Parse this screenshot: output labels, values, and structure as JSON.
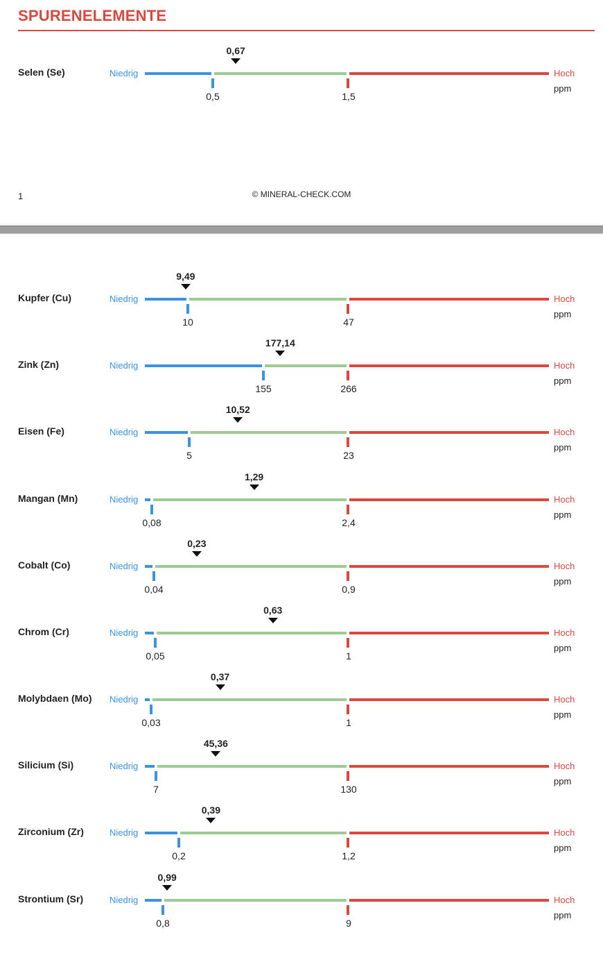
{
  "header": {
    "title": "SPURENELEMENTE"
  },
  "scale_labels": {
    "low": "Niedrig",
    "high": "Hoch",
    "unit": "ppm"
  },
  "footer": {
    "page_number": "1",
    "copyright": "© MINERAL-CHECK.COM"
  },
  "colors": {
    "accent": "#d9473f",
    "low": "#3b93e0",
    "normal": "#9ccc94",
    "high": "#d9473f"
  },
  "elements": [
    {
      "name": "Selen (Se)",
      "low_label": "0,5",
      "high_label": "1,5",
      "value_label": "0,67",
      "low": 0.5,
      "high": 1.5,
      "value": 0.67
    },
    {
      "name": "Kupfer (Cu)",
      "low_label": "10",
      "high_label": "47",
      "value_label": "9,49",
      "low": 10,
      "high": 47,
      "value": 9.49
    },
    {
      "name": "Zink (Zn)",
      "low_label": "155",
      "high_label": "266",
      "value_label": "177,14",
      "low": 155,
      "high": 266,
      "value": 177.14
    },
    {
      "name": "Eisen (Fe)",
      "low_label": "5",
      "high_label": "23",
      "value_label": "10,52",
      "low": 5,
      "high": 23,
      "value": 10.52
    },
    {
      "name": "Mangan (Mn)",
      "low_label": "0,08",
      "high_label": "2,4",
      "value_label": "1,29",
      "low": 0.08,
      "high": 2.4,
      "value": 1.29
    },
    {
      "name": "Cobalt (Co)",
      "low_label": "0,04",
      "high_label": "0,9",
      "value_label": "0,23",
      "low": 0.04,
      "high": 0.9,
      "value": 0.23
    },
    {
      "name": "Chrom (Cr)",
      "low_label": "0,05",
      "high_label": "1",
      "value_label": "0,63",
      "low": 0.05,
      "high": 1,
      "value": 0.63
    },
    {
      "name": "Molybdaen (Mo)",
      "low_label": "0,03",
      "high_label": "1",
      "value_label": "0,37",
      "low": 0.03,
      "high": 1,
      "value": 0.37
    },
    {
      "name": "Silicium (Si)",
      "low_label": "7",
      "high_label": "130",
      "value_label": "45,36",
      "low": 7,
      "high": 130,
      "value": 45.36
    },
    {
      "name": "Zirconium (Zr)",
      "low_label": "0,2",
      "high_label": "1,2",
      "value_label": "0,39",
      "low": 0.2,
      "high": 1.2,
      "value": 0.39
    },
    {
      "name": "Strontium (Sr)",
      "low_label": "0,8",
      "high_label": "9",
      "value_label": "0,99",
      "low": 0.8,
      "high": 9,
      "value": 0.99
    }
  ]
}
